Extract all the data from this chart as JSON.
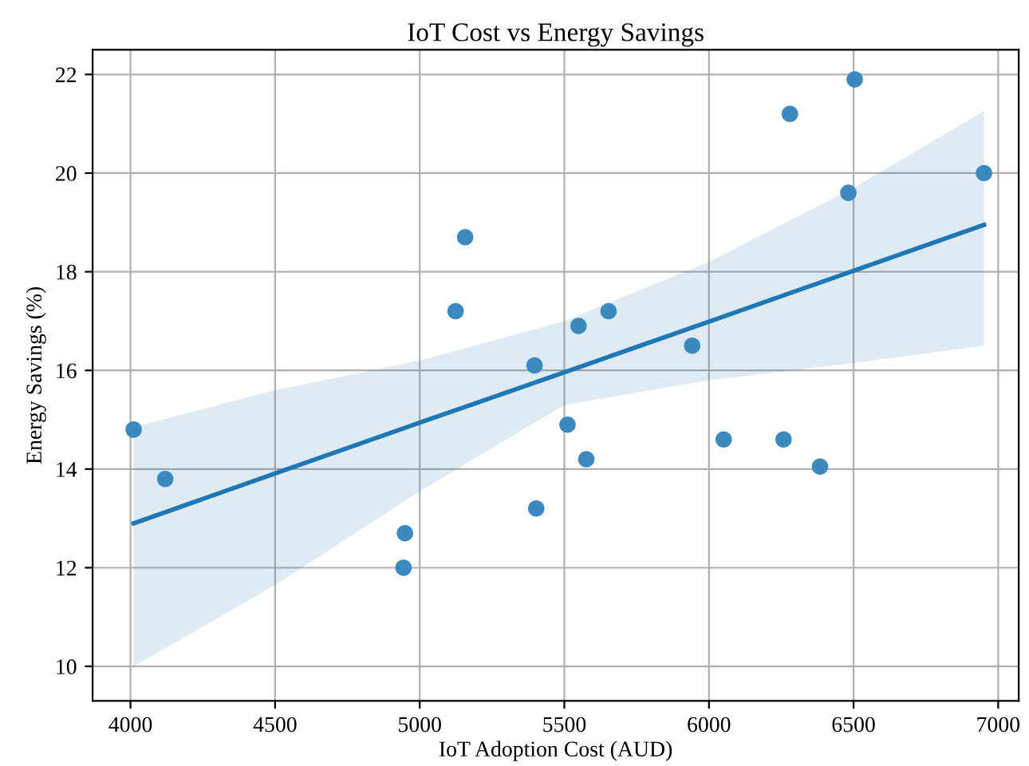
{
  "chart_data": {
    "type": "scatter",
    "title": "IoT Cost vs Energy Savings",
    "xlabel": "IoT Adoption Cost (AUD)",
    "ylabel": "Energy Savings (%)",
    "xlim": [
      3869,
      7071
    ],
    "ylim": [
      9.3,
      22.5
    ],
    "xticks": [
      4000,
      4500,
      5000,
      5500,
      6000,
      6500,
      7000
    ],
    "yticks": [
      10,
      12,
      14,
      16,
      18,
      20,
      22
    ],
    "grid": true,
    "series": [
      {
        "marker": "circle",
        "color": "#3c89c0",
        "x": [
          4011,
          4120,
          4949,
          4944,
          5124,
          5157,
          5397,
          5403,
          5511,
          5549,
          5576,
          5653,
          5942,
          6051,
          6258,
          6280,
          6384,
          6482,
          6504,
          6951
        ],
        "values": [
          14.8,
          13.8,
          12.7,
          12.0,
          17.2,
          18.7,
          16.1,
          13.2,
          14.9,
          16.9,
          14.2,
          17.2,
          16.5,
          14.6,
          14.6,
          21.2,
          14.05,
          19.6,
          21.9,
          20.0
        ]
      },
      {
        "type": "line",
        "color": "#1f77b4",
        "x": [
          4011,
          4500,
          5000,
          5500,
          6000,
          6500,
          6951
        ],
        "values": [
          12.9,
          13.91,
          14.94,
          15.96,
          16.99,
          18.02,
          18.95
        ],
        "lower": [
          10.0,
          11.65,
          13.55,
          15.3,
          15.8,
          16.15,
          16.5
        ],
        "upper": [
          14.85,
          15.6,
          16.2,
          17.0,
          18.2,
          19.7,
          21.26
        ]
      }
    ]
  }
}
